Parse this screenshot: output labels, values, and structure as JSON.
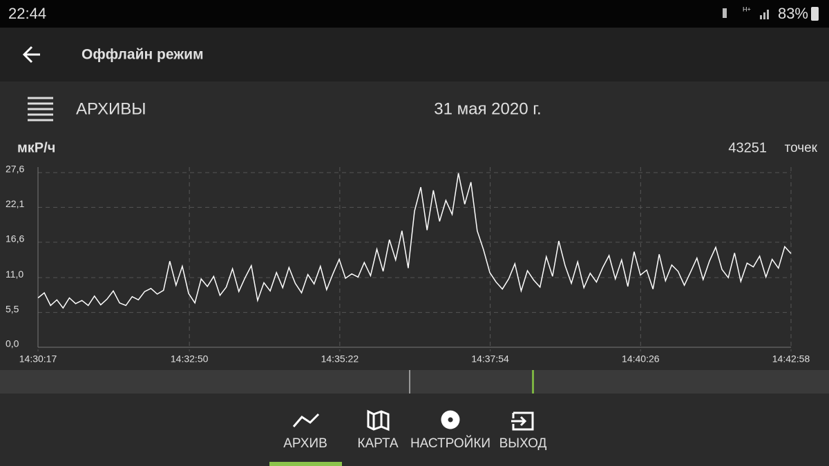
{
  "status_bar": {
    "time": "22:44",
    "battery": "83%"
  },
  "app_bar": {
    "title": "Оффлайн режим"
  },
  "header": {
    "title": "АРХИВЫ",
    "date": "31 мая 2020 г."
  },
  "points": {
    "count": 43251,
    "label": "точек"
  },
  "chart_data": {
    "type": "line",
    "y_label": "мкР/ч",
    "color": "#ffffff",
    "grid": true,
    "xlim": [
      "14:30:17",
      "14:42:58"
    ],
    "xticks": [
      "14:30:17",
      "14:32:50",
      "14:35:22",
      "14:37:54",
      "14:40:26",
      "14:42:58"
    ],
    "ylim": [
      0,
      27.6
    ],
    "yticks": [
      {
        "value": 0,
        "label": "0,0"
      },
      {
        "value": 5.5,
        "label": "5,5"
      },
      {
        "value": 11,
        "label": "11,0"
      },
      {
        "value": 16.6,
        "label": "16,6"
      },
      {
        "value": 22.1,
        "label": "22,1"
      },
      {
        "value": 27.6,
        "label": "27,6"
      }
    ],
    "values": [
      7.8,
      8.6,
      6.6,
      7.5,
      6.2,
      7.8,
      6.9,
      7.4,
      6.6,
      8.1,
      6.7,
      7.6,
      8.9,
      7.0,
      6.6,
      8.0,
      7.5,
      8.8,
      9.3,
      8.4,
      9.0,
      13.6,
      9.8,
      12.8,
      8.5,
      7.0,
      10.8,
      9.6,
      11.2,
      8.2,
      9.5,
      12.4,
      8.8,
      11.0,
      12.9,
      7.4,
      10.2,
      8.9,
      11.8,
      9.4,
      12.6,
      10.1,
      8.6,
      11.5,
      10.0,
      12.8,
      9.1,
      11.6,
      13.9,
      10.9,
      11.6,
      11.1,
      13.4,
      11.3,
      15.5,
      12.0,
      17.0,
      13.8,
      18.4,
      12.5,
      21.5,
      25.3,
      18.5,
      24.8,
      19.9,
      23.2,
      21.0,
      27.5,
      22.6,
      26.1,
      18.4,
      15.4,
      11.8,
      10.3,
      9.2,
      10.8,
      13.2,
      8.9,
      12.1,
      10.6,
      9.5,
      14.3,
      11.2,
      16.8,
      12.9,
      10.1,
      13.5,
      9.4,
      11.7,
      10.3,
      12.6,
      14.5,
      10.8,
      13.8,
      9.6,
      15.1,
      11.4,
      12.2,
      9.2,
      14.7,
      10.5,
      13.0,
      12.0,
      9.8,
      11.9,
      14.1,
      10.7,
      13.6,
      15.8,
      12.3,
      11.0,
      14.9,
      10.4,
      13.3,
      12.7,
      14.4,
      11.1,
      13.9,
      12.5,
      15.9,
      14.8
    ]
  },
  "nav": {
    "items": [
      {
        "label": "АРХИВ",
        "active": true
      },
      {
        "label": "КАРТА",
        "active": false
      },
      {
        "label": "НАСТРОЙКИ",
        "active": false
      },
      {
        "label": "ВЫХОД",
        "active": false
      }
    ]
  }
}
